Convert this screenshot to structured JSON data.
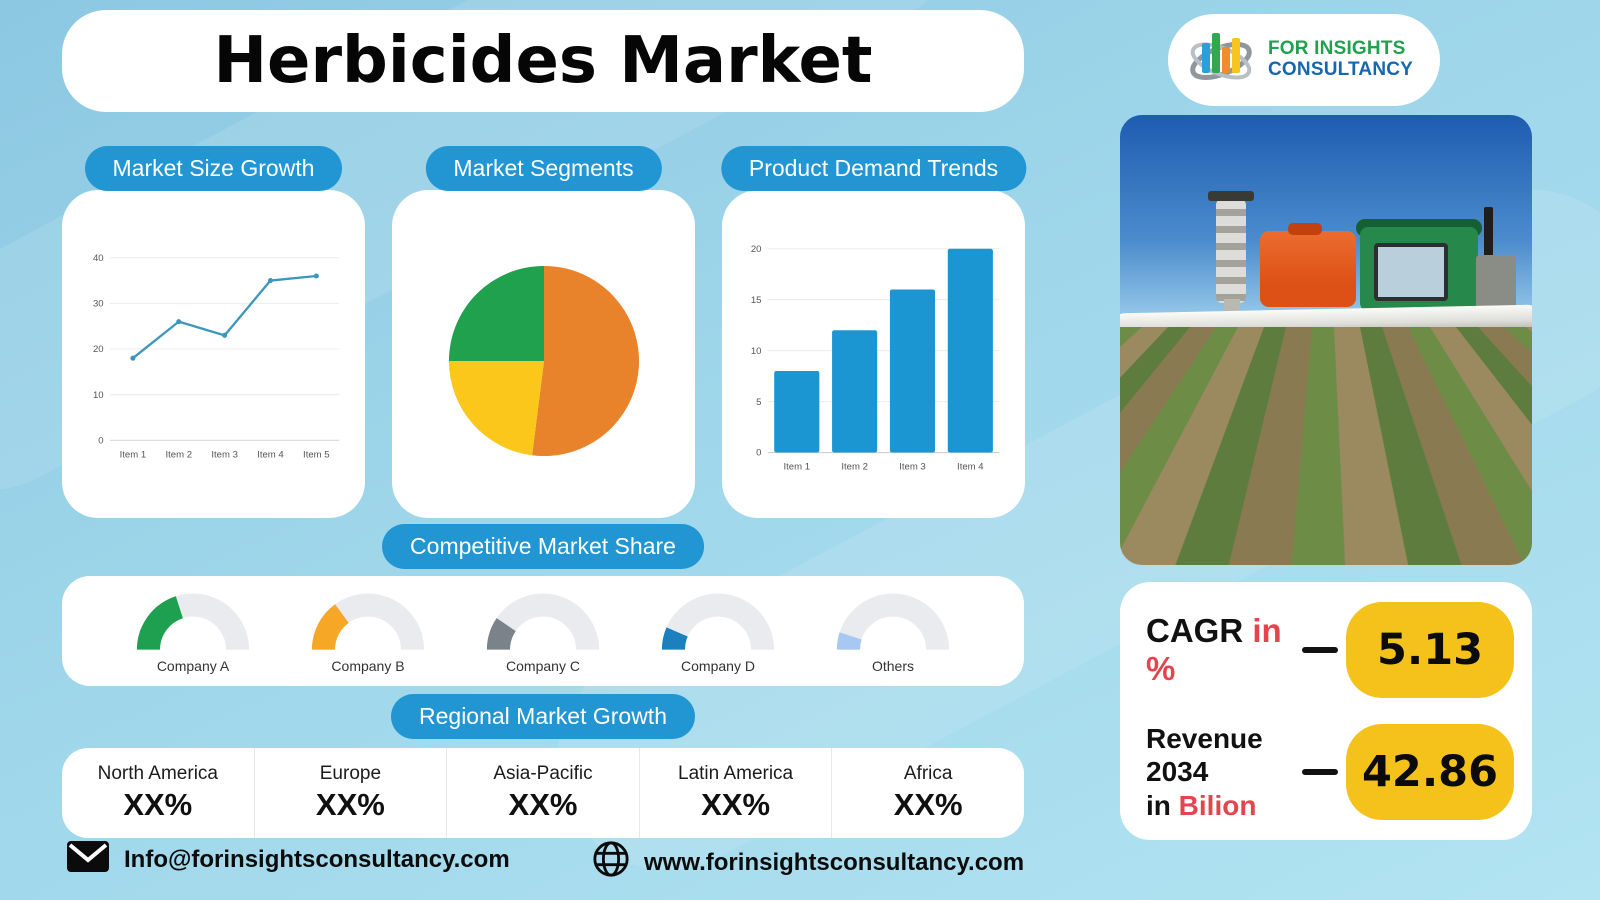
{
  "header": {
    "title": "Herbicides Market"
  },
  "logo": {
    "line1": "FOR INSIGHTS",
    "line2": "CONSULTANCY"
  },
  "chart_data": [
    {
      "type": "line",
      "title": "Market Size Growth",
      "categories": [
        "Item 1",
        "Item 2",
        "Item 3",
        "Item 4",
        "Item 5"
      ],
      "values": [
        18,
        26,
        23,
        35,
        36
      ],
      "ylim": [
        0,
        40
      ],
      "yticks": [
        0,
        10,
        20,
        30,
        40
      ],
      "color": "#3d97bc",
      "grid": true,
      "legend": "none"
    },
    {
      "type": "pie",
      "title": "Market Segments",
      "slices": [
        {
          "value": 52,
          "color": "#e8822b"
        },
        {
          "value": 23,
          "color": "#fbc71b"
        },
        {
          "value": 25,
          "color": "#1fa14d"
        }
      ],
      "start_angle_deg": -90,
      "direction": "clockwise"
    },
    {
      "type": "bar",
      "title": "Product Demand Trends",
      "categories": [
        "Item 1",
        "Item 2",
        "Item 3",
        "Item 4"
      ],
      "values": [
        8,
        12,
        16,
        20
      ],
      "ylim": [
        0,
        20
      ],
      "yticks": [
        0,
        5,
        10,
        15,
        20
      ],
      "color": "#1b96d2",
      "grid": true,
      "legend": "none"
    },
    {
      "type": "gauge",
      "title": "Competitive Market Share",
      "track_color": "#e9ebee",
      "gauges": [
        {
          "label": "Company A",
          "percent": 40,
          "color": "#1ea050"
        },
        {
          "label": "Company B",
          "percent": 30,
          "color": "#f5a725"
        },
        {
          "label": "Company C",
          "percent": 19,
          "color": "#7a828a"
        },
        {
          "label": "Company D",
          "percent": 13,
          "color": "#1c7fbe"
        },
        {
          "label": "Others",
          "percent": 10,
          "color": "#a6c8f2"
        }
      ]
    }
  ],
  "regional": {
    "title": "Regional Market Growth",
    "regions": [
      {
        "name": "North America",
        "value": "XX%"
      },
      {
        "name": "Europe",
        "value": "XX%"
      },
      {
        "name": "Asia-Pacific",
        "value": "XX%"
      },
      {
        "name": "Latin America",
        "value": "XX%"
      },
      {
        "name": "Africa",
        "value": "XX%"
      }
    ]
  },
  "stats": {
    "cagr": {
      "label": "CAGR",
      "unit": "in %",
      "value": "5.13"
    },
    "revenue": {
      "label": "Revenue 2034",
      "prefix": "in",
      "unit": "Bilion",
      "value": "42.86"
    }
  },
  "footer": {
    "email": "Info@forinsightsconsultancy.com",
    "website": "www.forinsightsconsultancy.com"
  },
  "colors": {
    "pill_blue": "#2196d2",
    "badge_yellow": "#f5c21b",
    "accent_red": "#e2454e"
  }
}
